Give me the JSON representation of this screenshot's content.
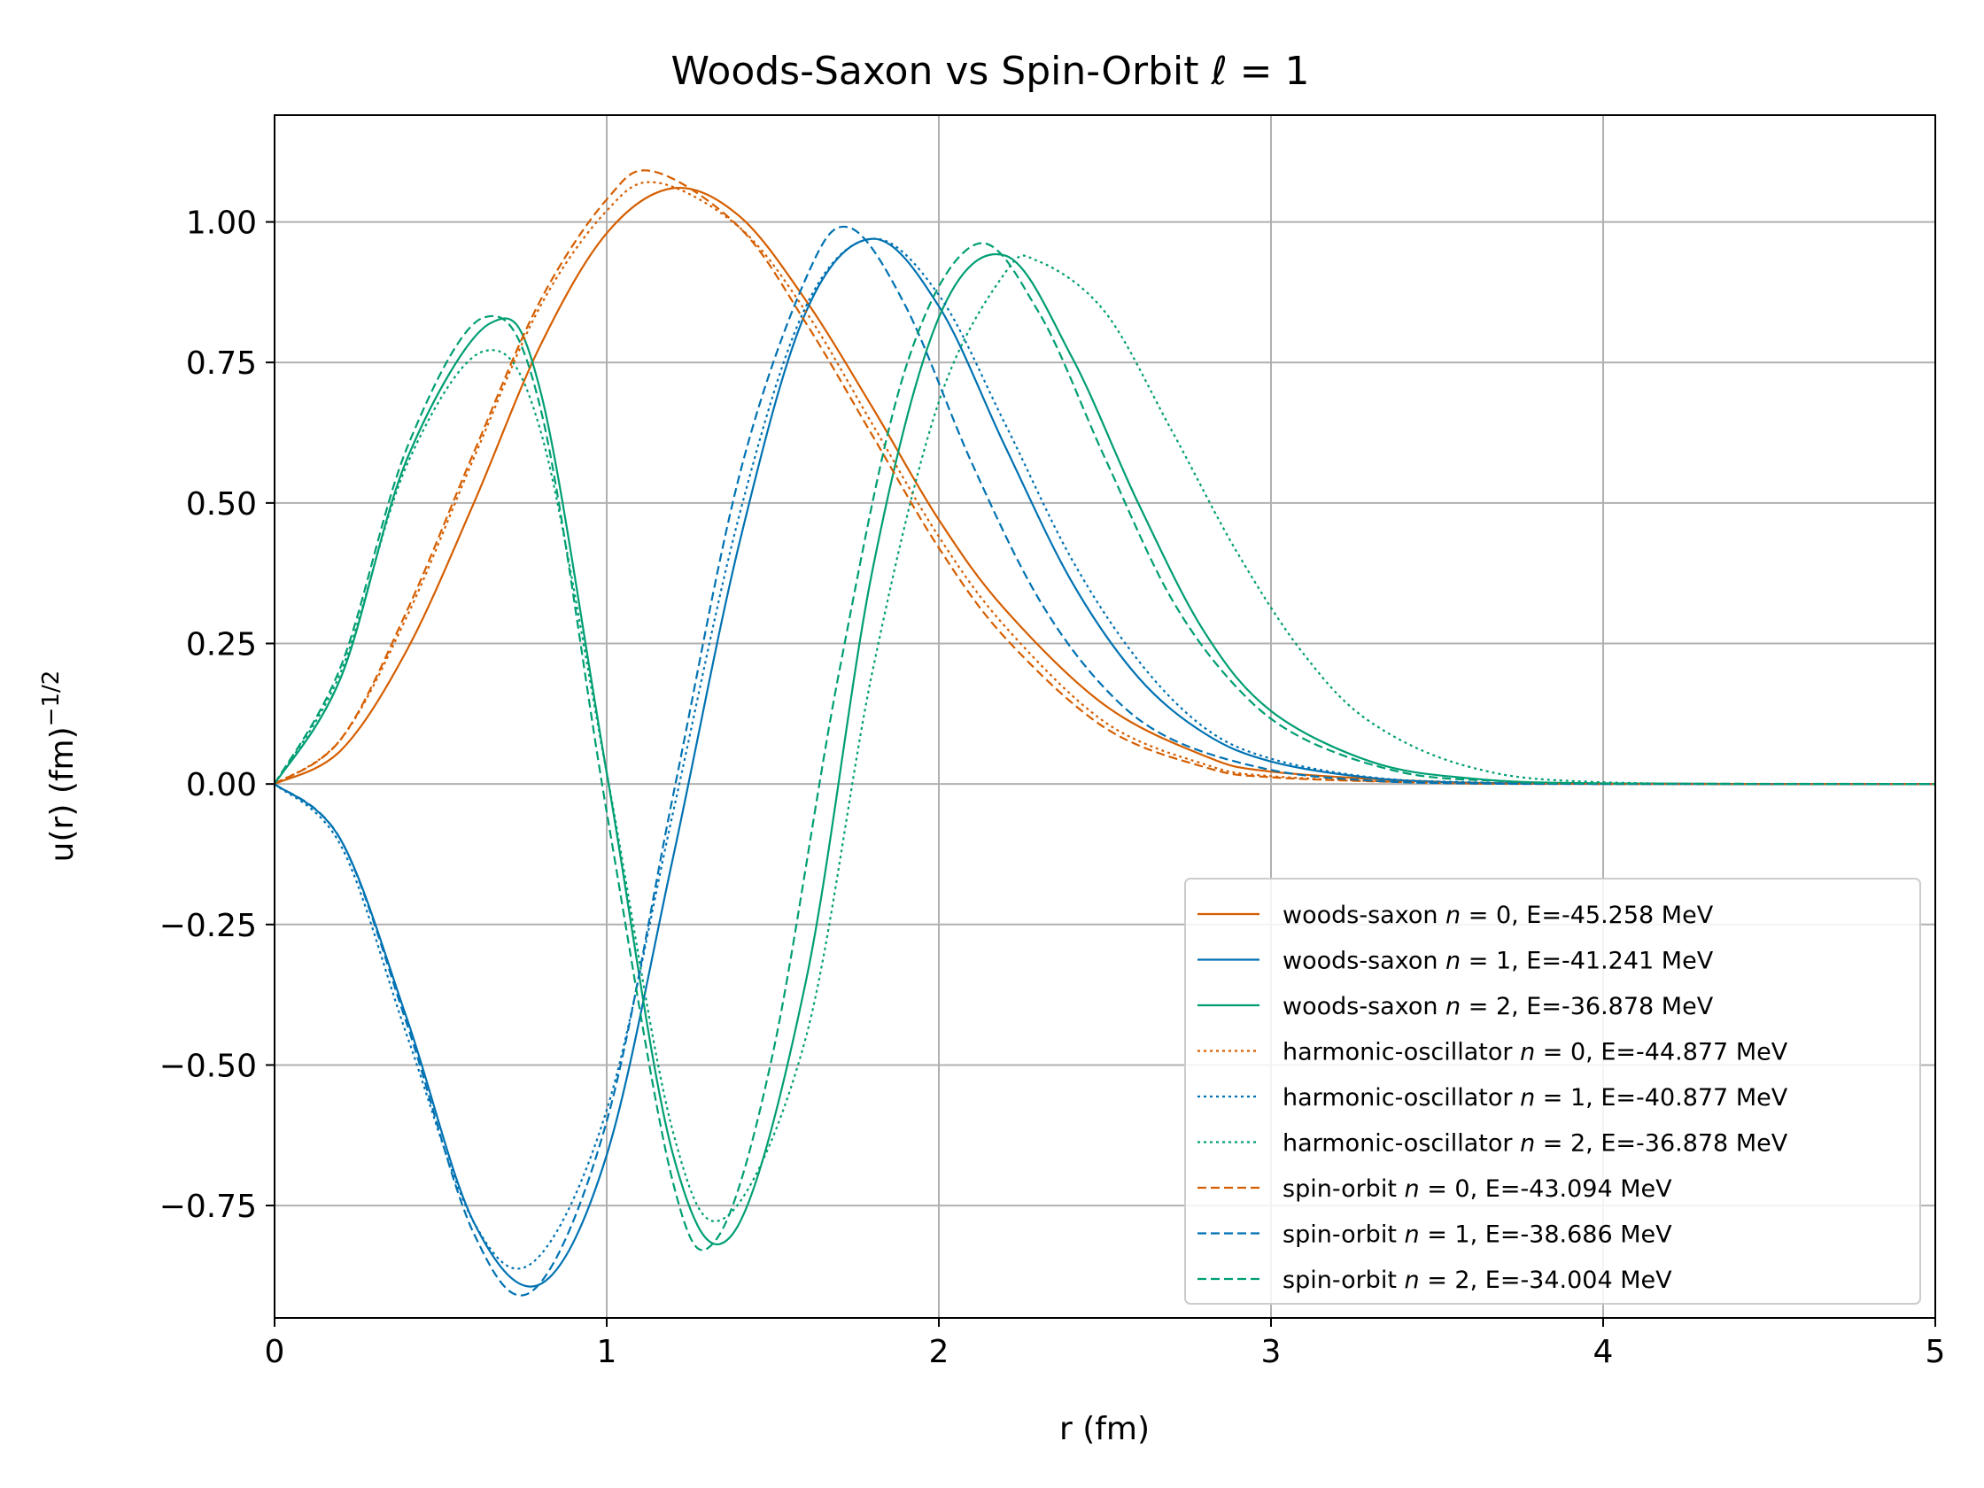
{
  "chart_data": {
    "type": "line",
    "title": "Woods-Saxon vs Spin-Orbit ℓ = 1",
    "title_parts": {
      "main": "Woods-Saxon vs Spin-Orbit ",
      "symbol": "ℓ",
      "suffix": " = 1"
    },
    "xlabel": "r (fm)",
    "ylabel": "u(r) (fm)−1/2",
    "ylabel_parts": {
      "main": "u(r)  (fm)",
      "sup": "−1/2"
    },
    "xlim": [
      0,
      5
    ],
    "ylim": [
      -0.95,
      1.19
    ],
    "x_ticks": [
      0,
      1,
      2,
      3,
      4,
      5
    ],
    "x_tick_labels": [
      "0",
      "1",
      "2",
      "3",
      "4",
      "5"
    ],
    "y_ticks": [
      1.0,
      0.75,
      0.5,
      0.25,
      0.0,
      -0.25,
      -0.5,
      -0.75
    ],
    "y_tick_labels": [
      "1.00",
      "0.75",
      "0.50",
      "0.25",
      "0.00",
      "−0.25",
      "−0.50",
      "−0.75"
    ],
    "grid": true,
    "legend_position": "lower-right",
    "colors": {
      "n0": "#d55e00",
      "n1": "#0072b2",
      "n2": "#009e73"
    },
    "series": [
      {
        "name": "woods-saxon n = 0, E=-45.258 MeV",
        "name_parts": [
          "woods-saxon ",
          "n",
          " = 0, E=-45.258 MeV"
        ],
        "color": "#d55e00",
        "style": "solid",
        "x": [
          0,
          0.2,
          0.4,
          0.6,
          0.8,
          1.0,
          1.2,
          1.4,
          1.6,
          1.8,
          2.0,
          2.2,
          2.5,
          2.8,
          3.0,
          3.5,
          4.0,
          5.0
        ],
        "y": [
          0,
          0.06,
          0.24,
          0.5,
          0.78,
          0.98,
          1.06,
          1.01,
          0.86,
          0.67,
          0.47,
          0.31,
          0.14,
          0.05,
          0.022,
          0.004,
          0.0005,
          0
        ]
      },
      {
        "name": "woods-saxon n = 1, E=-41.241 MeV",
        "name_parts": [
          "woods-saxon ",
          "n",
          " = 1, E=-41.241 MeV"
        ],
        "color": "#0072b2",
        "style": "solid",
        "x": [
          0,
          0.2,
          0.4,
          0.6,
          0.8,
          1.0,
          1.2,
          1.4,
          1.6,
          1.8,
          2.0,
          2.2,
          2.4,
          2.6,
          2.8,
          3.0,
          3.3,
          3.6,
          4.0,
          5.0
        ],
        "y": [
          0,
          -0.1,
          -0.42,
          -0.78,
          -0.89,
          -0.66,
          -0.13,
          0.43,
          0.84,
          0.97,
          0.85,
          0.6,
          0.36,
          0.19,
          0.09,
          0.04,
          0.011,
          0.002,
          0.0003,
          0
        ]
      },
      {
        "name": "woods-saxon n = 2, E=-36.878 MeV",
        "name_parts": [
          "woods-saxon ",
          "n",
          " = 2, E=-36.878 MeV"
        ],
        "color": "#009e73",
        "style": "solid",
        "x": [
          0,
          0.2,
          0.4,
          0.65,
          0.8,
          1.0,
          1.2,
          1.38,
          1.6,
          1.8,
          2.0,
          2.2,
          2.4,
          2.6,
          2.8,
          3.0,
          3.3,
          3.6,
          4.0,
          5.0
        ],
        "y": [
          0,
          0.19,
          0.58,
          0.82,
          0.7,
          0.02,
          -0.66,
          -0.8,
          -0.35,
          0.38,
          0.83,
          0.94,
          0.76,
          0.5,
          0.27,
          0.13,
          0.04,
          0.01,
          0.001,
          0
        ]
      },
      {
        "name": "harmonic-oscillator n = 0, E=-44.877 MeV",
        "name_parts": [
          "harmonic-oscillator ",
          "n",
          " = 0, E=-44.877 MeV"
        ],
        "color": "#d55e00",
        "style": "dotted",
        "x": [
          0,
          0.2,
          0.4,
          0.6,
          0.8,
          1.0,
          1.15,
          1.4,
          1.6,
          1.8,
          2.0,
          2.2,
          2.5,
          2.8,
          3.0,
          3.5,
          4.0,
          5.0
        ],
        "y": [
          0,
          0.08,
          0.3,
          0.58,
          0.85,
          1.02,
          1.07,
          0.99,
          0.84,
          0.64,
          0.44,
          0.28,
          0.11,
          0.035,
          0.014,
          0.002,
          0.0001,
          0
        ]
      },
      {
        "name": "harmonic-oscillator n = 1, E=-40.877 MeV",
        "name_parts": [
          "harmonic-oscillator ",
          "n",
          " = 1, E=-40.877 MeV"
        ],
        "color": "#0072b2",
        "style": "dotted",
        "x": [
          0,
          0.2,
          0.4,
          0.6,
          0.78,
          1.0,
          1.2,
          1.4,
          1.6,
          1.8,
          2.0,
          2.2,
          2.4,
          2.6,
          2.8,
          3.0,
          3.3,
          3.6,
          4.0,
          5.0
        ],
        "y": [
          0,
          -0.11,
          -0.45,
          -0.78,
          -0.85,
          -0.58,
          -0.05,
          0.48,
          0.85,
          0.97,
          0.87,
          0.64,
          0.4,
          0.22,
          0.1,
          0.045,
          0.012,
          0.003,
          0.0003,
          0
        ]
      },
      {
        "name": "harmonic-oscillator n = 2, E=-36.878 MeV",
        "name_parts": [
          "harmonic-oscillator ",
          "n",
          " = 2, E=-36.878 MeV"
        ],
        "color": "#009e73",
        "style": "dotted",
        "x": [
          0,
          0.2,
          0.4,
          0.63,
          0.8,
          1.0,
          1.2,
          1.36,
          1.6,
          1.8,
          2.0,
          2.2,
          2.3,
          2.5,
          2.7,
          2.9,
          3.1,
          3.3,
          3.6,
          4.0,
          5.0
        ],
        "y": [
          0,
          0.2,
          0.57,
          0.77,
          0.63,
          0.02,
          -0.62,
          -0.77,
          -0.45,
          0.2,
          0.68,
          0.91,
          0.93,
          0.84,
          0.63,
          0.41,
          0.23,
          0.11,
          0.03,
          0.003,
          0
        ]
      },
      {
        "name": "spin-orbit n = 0, E=-43.094 MeV",
        "name_parts": [
          "spin-orbit ",
          "n",
          " = 0, E=-43.094 MeV"
        ],
        "color": "#d55e00",
        "style": "dashed",
        "x": [
          0,
          0.2,
          0.4,
          0.6,
          0.8,
          1.0,
          1.14,
          1.4,
          1.6,
          1.8,
          2.0,
          2.2,
          2.5,
          2.8,
          3.0,
          3.5,
          4.0,
          5.0
        ],
        "y": [
          0,
          0.08,
          0.31,
          0.59,
          0.86,
          1.04,
          1.09,
          0.99,
          0.82,
          0.62,
          0.42,
          0.26,
          0.1,
          0.03,
          0.012,
          0.002,
          0.0001,
          0
        ]
      },
      {
        "name": "spin-orbit n = 1, E=-38.686 MeV",
        "name_parts": [
          "spin-orbit ",
          "n",
          " = 1, E=-38.686 MeV"
        ],
        "color": "#0072b2",
        "style": "dashed",
        "x": [
          0,
          0.2,
          0.4,
          0.6,
          0.78,
          1.0,
          1.2,
          1.4,
          1.6,
          1.73,
          1.9,
          2.1,
          2.3,
          2.5,
          2.7,
          3.0,
          3.3,
          3.6,
          4.0,
          5.0
        ],
        "y": [
          0,
          -0.1,
          -0.43,
          -0.8,
          -0.9,
          -0.6,
          -0.02,
          0.55,
          0.9,
          0.99,
          0.85,
          0.57,
          0.33,
          0.17,
          0.08,
          0.025,
          0.006,
          0.001,
          0.0001,
          0
        ]
      },
      {
        "name": "spin-orbit n = 2, E=-34.004 MeV",
        "name_parts": [
          "spin-orbit ",
          "n",
          " = 2, E=-34.004 MeV"
        ],
        "color": "#009e73",
        "style": "dashed",
        "x": [
          0,
          0.2,
          0.4,
          0.63,
          0.8,
          1.0,
          1.2,
          1.33,
          1.5,
          1.7,
          1.9,
          2.11,
          2.3,
          2.5,
          2.7,
          2.9,
          3.1,
          3.4,
          3.7,
          4.0,
          5.0
        ],
        "y": [
          0,
          0.21,
          0.6,
          0.83,
          0.67,
          -0.05,
          -0.71,
          -0.81,
          -0.48,
          0.2,
          0.74,
          0.96,
          0.84,
          0.58,
          0.33,
          0.17,
          0.08,
          0.02,
          0.005,
          0.001,
          0
        ]
      }
    ]
  }
}
